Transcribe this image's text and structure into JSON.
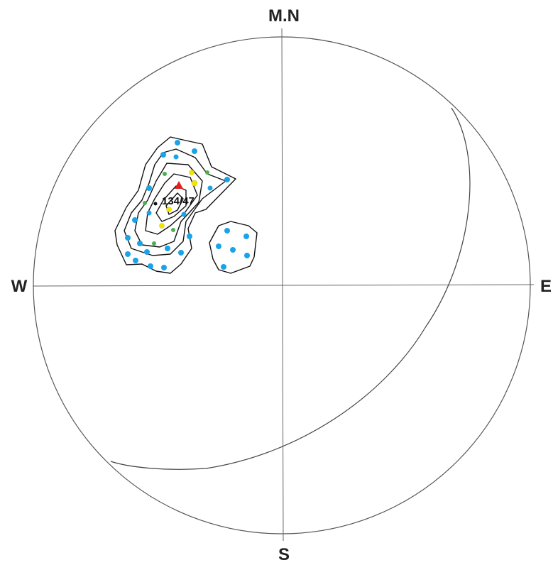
{
  "labels": {
    "north": "M.N",
    "south": "S",
    "west": "W",
    "east": "E",
    "max_pole": "134/47"
  },
  "colors": {
    "net_outline": "#555555",
    "axes": "#666666",
    "great_circle": "#444444",
    "contour": "#111111",
    "pole_blue": "#1aa3e8",
    "pole_yellow": "#f2e600",
    "pole_green": "#4caf50",
    "max_triangle": "#e02020"
  },
  "icons": {
    "max_pole_marker": "red-triangle",
    "pole_marker": "filled-circle"
  }
}
